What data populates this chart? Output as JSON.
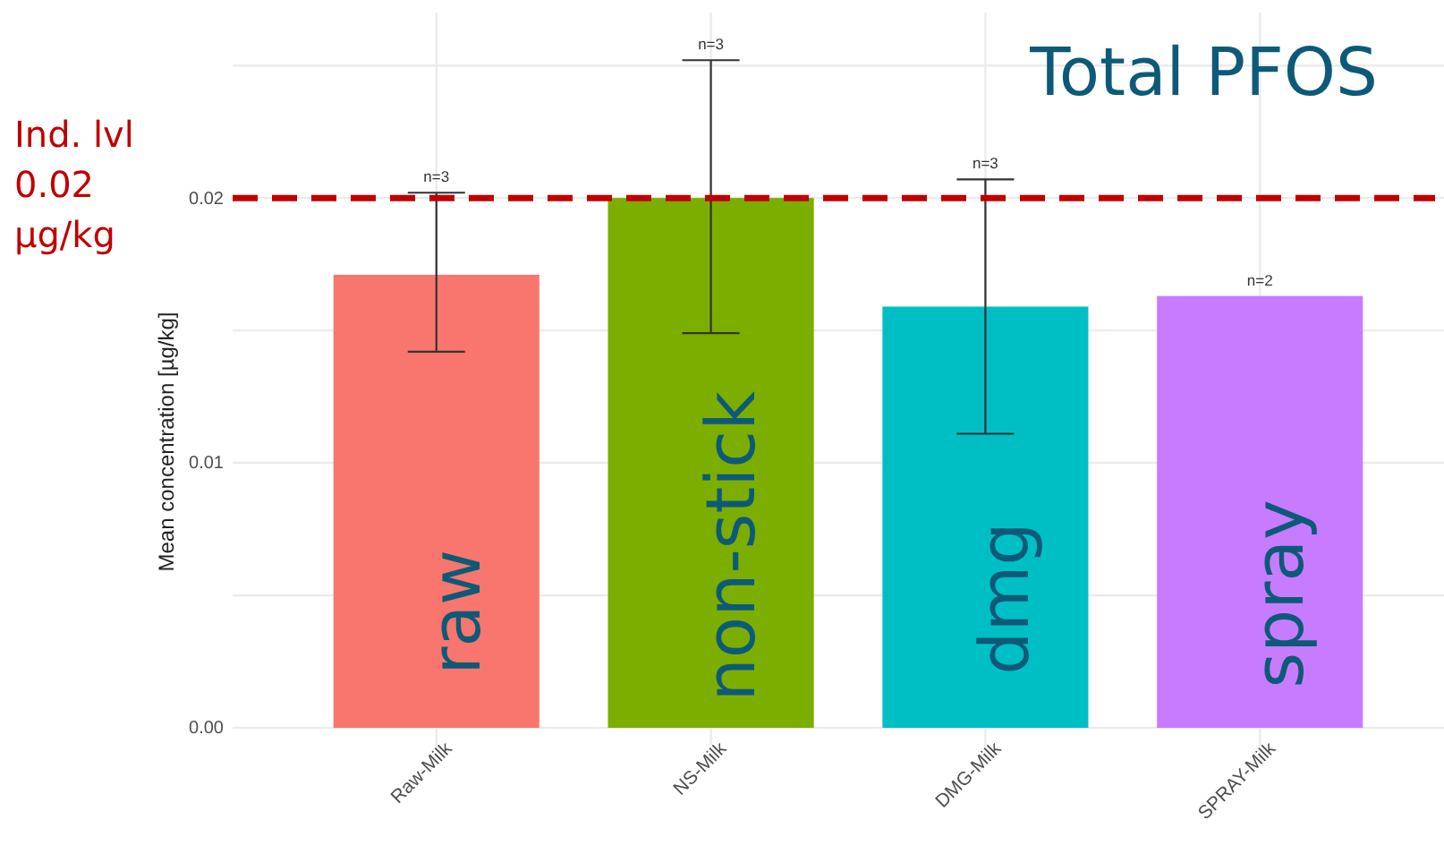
{
  "chart_data": {
    "type": "bar",
    "title": "Total PFOS",
    "ylabel": "Mean concentration [µg/kg]",
    "categories": [
      "Raw-Milk",
      "NS-Milk",
      "DMG-Milk",
      "SPRAY-Milk"
    ],
    "values": [
      0.0171,
      0.02,
      0.0159,
      0.0163
    ],
    "colors": [
      "#f8766d",
      "#7cae00",
      "#00bfc4",
      "#c77cff"
    ],
    "errors": [
      [
        0.0142,
        0.0202
      ],
      [
        0.0149,
        0.0252
      ],
      [
        0.0111,
        0.0207
      ],
      null
    ],
    "ylim": [
      0,
      0.027
    ],
    "yticks": [
      {
        "value": 0,
        "label": "0.00"
      },
      0.01,
      0.02
    ],
    "grid": true,
    "ref_lines": [
      {
        "axis": "y",
        "value": 0.02,
        "label": "Ind. lvl 0.02 µg/kg",
        "color": "#c00000",
        "line_style": "dashed"
      }
    ],
    "annotations": [
      {
        "text": "n=3",
        "x": "Raw-Milk",
        "y": 0.0202
      },
      {
        "text": "n=3",
        "x": "NS-Milk",
        "y": 0.0252
      },
      {
        "text": "n=3",
        "x": "DMG-Milk",
        "y": 0.0207
      },
      {
        "text": "n=2",
        "x": "SPRAY-Milk",
        "y": 0.0163
      },
      "raw",
      "non-stick",
      "dmg",
      "spray"
    ]
  }
}
